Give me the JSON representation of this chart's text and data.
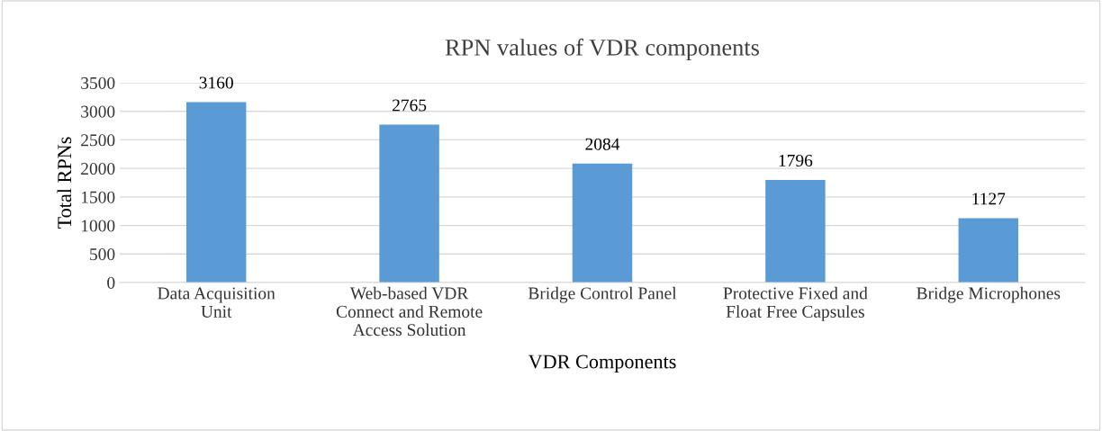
{
  "chart_data": {
    "type": "bar",
    "title": "RPN values of VDR components",
    "xlabel": "VDR Components",
    "ylabel": "Total RPNs",
    "categories": [
      "Data Acquisition\nUnit",
      "Web-based VDR\nConnect and Remote\nAccess Solution",
      "Bridge Control Panel",
      "Protective Fixed and\nFloat Free Capsules",
      "Bridge Microphones"
    ],
    "values": [
      3160,
      2765,
      2084,
      1796,
      1127
    ],
    "color": "#5b9bd5",
    "ylim": [
      0,
      3500
    ],
    "yticks": [
      0,
      500,
      1000,
      1500,
      2000,
      2500,
      3000,
      3500
    ],
    "grid": "y",
    "data_labels": true
  }
}
